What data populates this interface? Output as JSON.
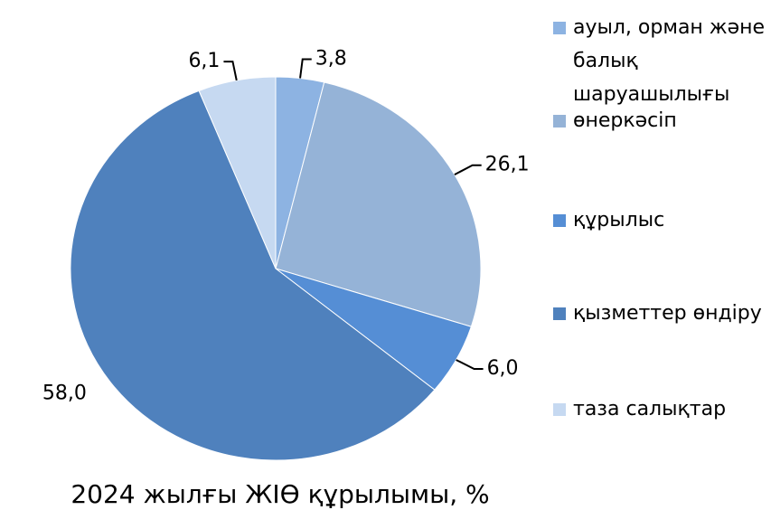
{
  "chart_data": {
    "type": "pie",
    "title": "2024 жылғы ЖІӨ құрылымы, %",
    "categories": [
      "ауыл, орман және балық шаруашылығы",
      "өнеркәсіп",
      "құрылыс",
      "қызметтер өндіру",
      "таза салықтар"
    ],
    "values": [
      3.8,
      26.1,
      6.0,
      58.0,
      6.1
    ],
    "value_labels": [
      "3,8",
      "26,1",
      "6,0",
      "58,0",
      "6,1"
    ],
    "colors": [
      "#8db3e2",
      "#95b3d7",
      "#558ed5",
      "#4f81bd",
      "#c6d9f1"
    ],
    "legend": "right"
  }
}
